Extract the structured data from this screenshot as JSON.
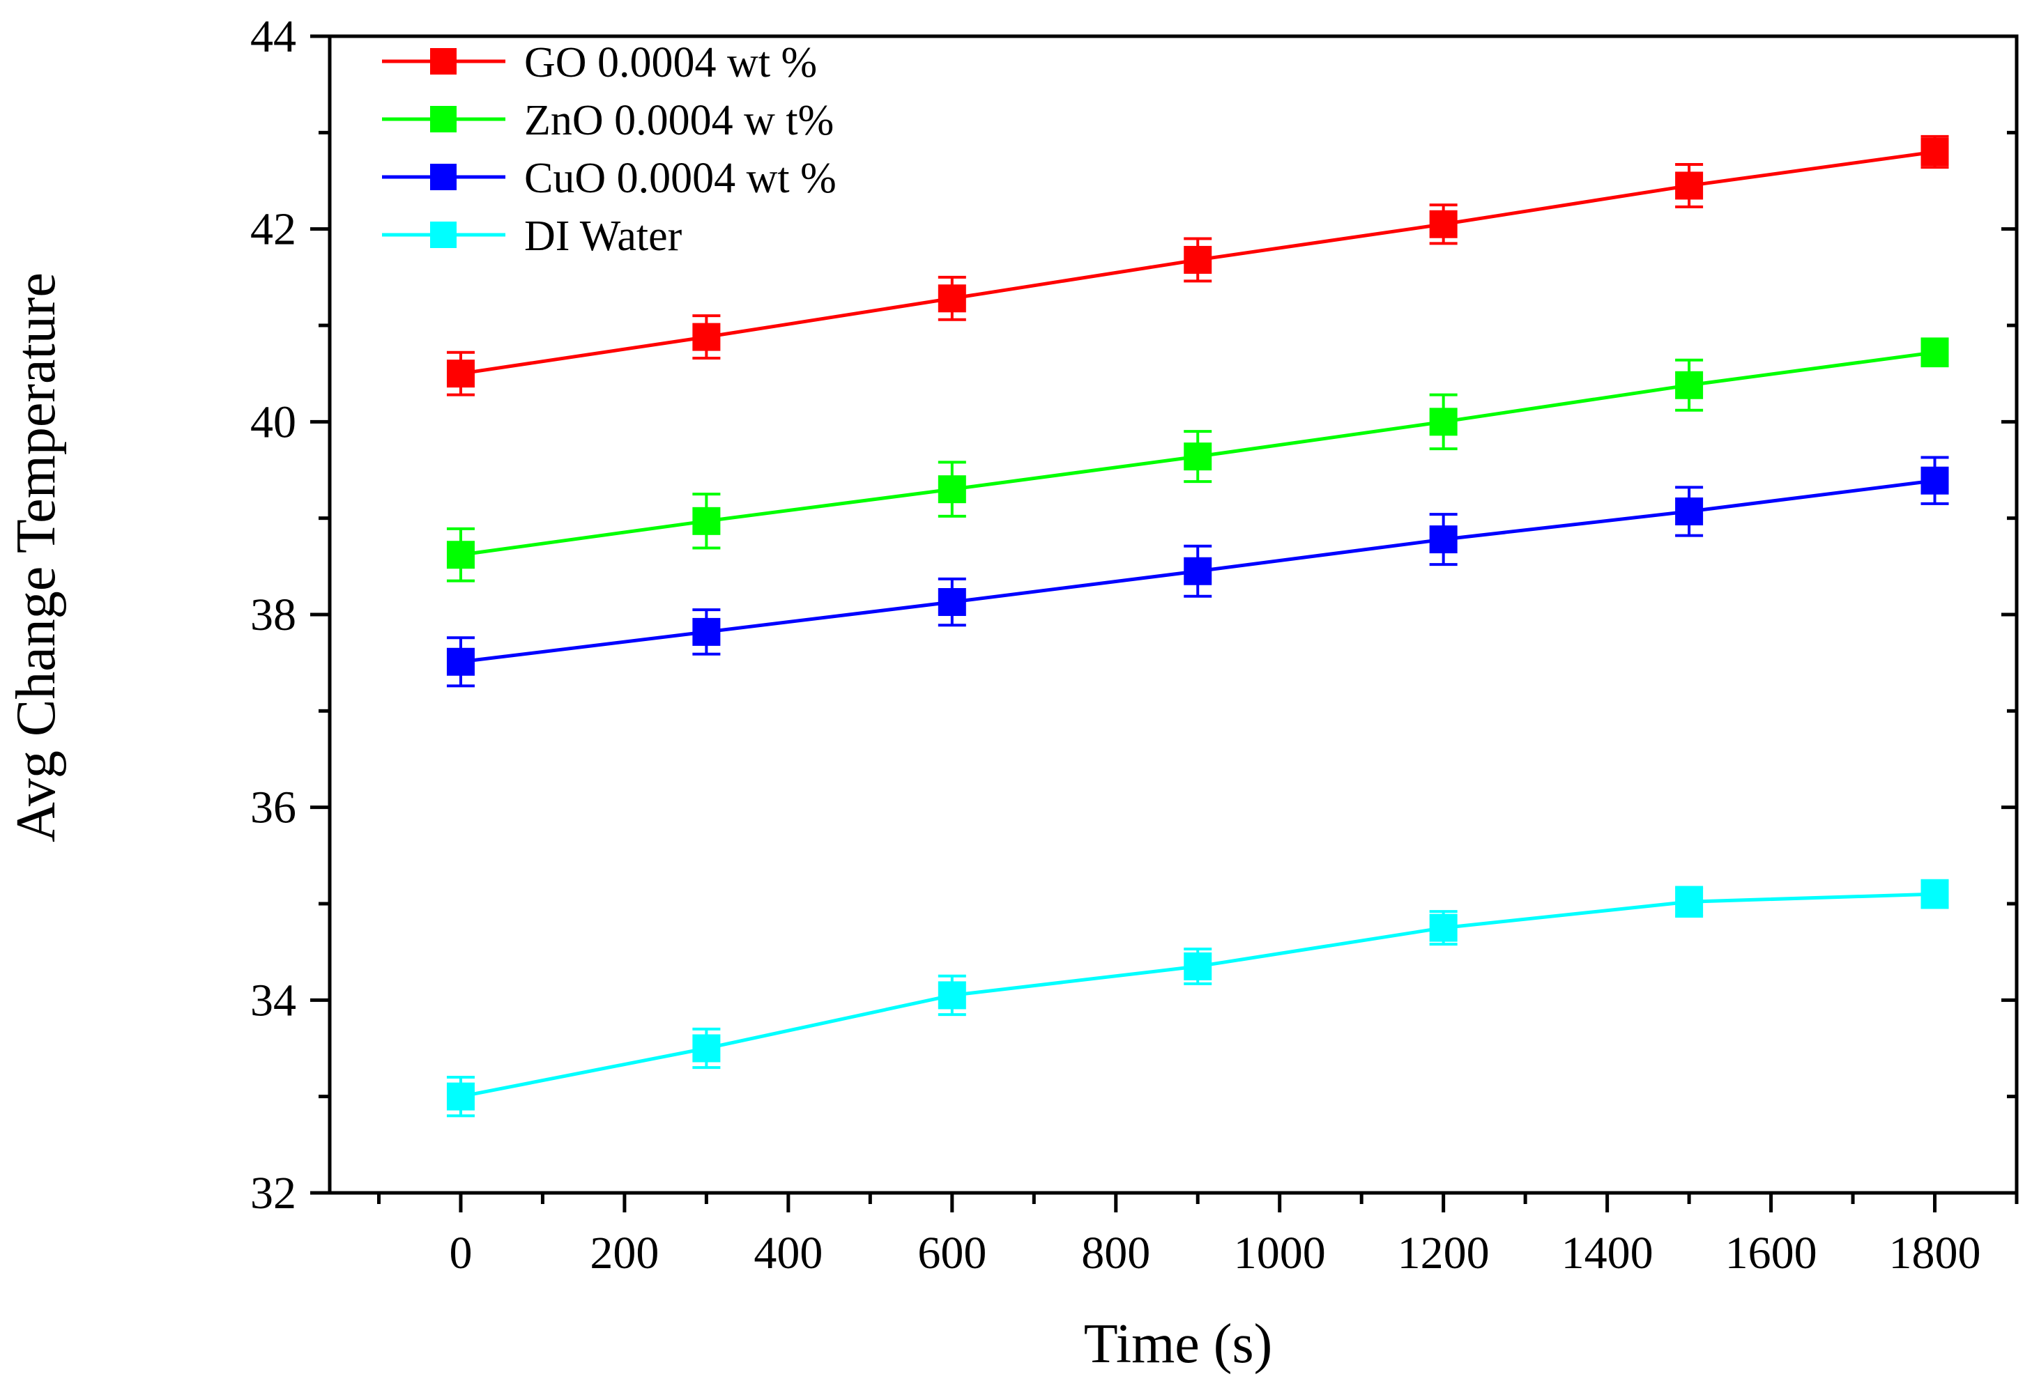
{
  "chart_data": {
    "type": "line",
    "title": "",
    "xlabel": "Time (s)",
    "ylabel": "Avg Change Temperature",
    "x": [
      0,
      300,
      600,
      900,
      1200,
      1500,
      1800
    ],
    "xlim": [
      -160,
      1900
    ],
    "ylim": [
      32,
      44
    ],
    "x_ticks": [
      0,
      200,
      400,
      600,
      800,
      1000,
      1200,
      1400,
      1600,
      1800
    ],
    "x_tick_labels": [
      "0",
      "200",
      "400",
      "600",
      "800",
      "1000",
      "1200",
      "1400",
      "1600",
      "1800"
    ],
    "y_ticks": [
      32,
      34,
      36,
      38,
      40,
      42,
      44
    ],
    "y_tick_labels": [
      "32",
      "34",
      "36",
      "38",
      "40",
      "42",
      "44"
    ],
    "grid": false,
    "legend_position": "top-left",
    "series": [
      {
        "name": "GO 0.0004 wt %",
        "color": "#ff0000",
        "marker": "square",
        "values": [
          40.5,
          40.88,
          41.28,
          41.68,
          42.05,
          42.45,
          42.8
        ],
        "errors": [
          0.22,
          0.22,
          0.22,
          0.22,
          0.2,
          0.22,
          0.16
        ]
      },
      {
        "name": "ZnO 0.0004 w t%",
        "color": "#00ff00",
        "marker": "square",
        "values": [
          38.62,
          38.97,
          39.3,
          39.64,
          40.0,
          40.38,
          40.72
        ],
        "errors": [
          0.27,
          0.28,
          0.28,
          0.26,
          0.28,
          0.26,
          0.14
        ]
      },
      {
        "name": "CuO 0.0004 wt %",
        "color": "#0000ff",
        "marker": "square",
        "values": [
          37.51,
          37.82,
          38.13,
          38.45,
          38.78,
          39.07,
          39.39
        ],
        "errors": [
          0.25,
          0.23,
          0.24,
          0.26,
          0.26,
          0.25,
          0.24
        ]
      },
      {
        "name": "DI Water",
        "color": "#00ffff",
        "marker": "square",
        "values": [
          33.0,
          33.5,
          34.05,
          34.35,
          34.75,
          35.02,
          35.1
        ],
        "errors": [
          0.2,
          0.2,
          0.2,
          0.18,
          0.17,
          0.15,
          0.14
        ]
      }
    ]
  }
}
